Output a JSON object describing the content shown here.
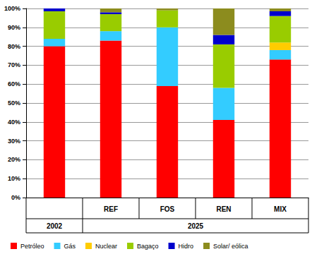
{
  "chart_data": {
    "type": "bar",
    "stacked": true,
    "grid": true,
    "legend": "bottom",
    "categories": [
      null,
      "REF",
      "FOS",
      "REN",
      "MIX"
    ],
    "category_groups": [
      {
        "label": "2002",
        "count": 1
      },
      {
        "label": "2025",
        "count": 4
      }
    ],
    "ylim": [
      0,
      100
    ],
    "yticks": [
      {
        "value": 0,
        "label": "0%"
      },
      {
        "value": 10,
        "label": "10%"
      },
      {
        "value": 20,
        "label": "20%"
      },
      {
        "value": 30,
        "label": "30%"
      },
      {
        "value": 40,
        "label": "40%"
      },
      {
        "value": 50,
        "label": "50%"
      },
      {
        "value": 60,
        "label": "60%"
      },
      {
        "value": 70,
        "label": "70%"
      },
      {
        "value": 80,
        "label": "80%"
      },
      {
        "value": 90,
        "label": "90%"
      },
      {
        "value": 100,
        "label": "100%"
      }
    ],
    "series": [
      {
        "name": "Petróleo",
        "color": "#ff0000",
        "values": [
          80,
          83,
          59,
          41,
          73
        ]
      },
      {
        "name": "Gás",
        "color": "#33ccff",
        "values": [
          4,
          5,
          31,
          17,
          5
        ]
      },
      {
        "name": "Nuclear",
        "color": "#ffcc00",
        "values": [
          0,
          0,
          0,
          0,
          4
        ]
      },
      {
        "name": "Bagaço",
        "color": "#99cc00",
        "values": [
          14.5,
          9,
          9,
          23,
          14
        ]
      },
      {
        "name": "Hidro",
        "color": "#0000cc",
        "values": [
          1.5,
          1,
          0,
          5,
          2.5
        ]
      },
      {
        "name": "Solar/ eólica",
        "color": "#8c8c1e",
        "values": [
          0,
          2,
          1,
          14,
          1.5
        ]
      }
    ]
  }
}
